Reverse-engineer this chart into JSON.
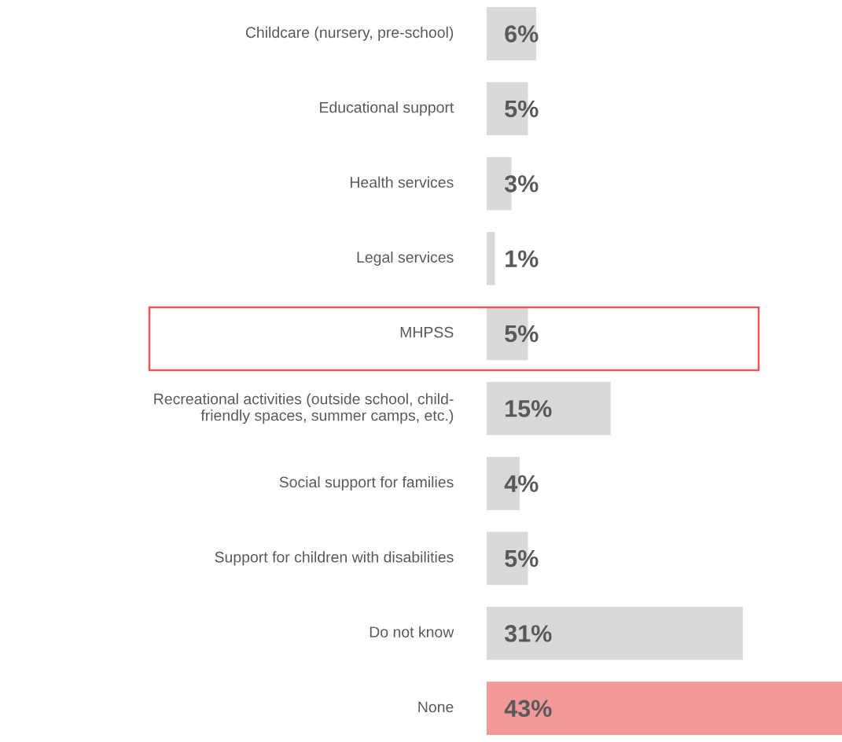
{
  "chart_data": {
    "type": "bar",
    "orientation": "horizontal",
    "categories": [
      "Childcare (nursery, pre-school)",
      "Educational support",
      "Health services",
      "Legal services",
      "MHPSS",
      "Recreational activities (outside school, child-\nfriendly spaces, summer camps, etc.)",
      "Social support for families",
      "Support for children with disabilities",
      "Do not know",
      "None"
    ],
    "values": [
      6,
      5,
      3,
      1,
      5,
      15,
      4,
      5,
      31,
      43
    ],
    "colors": [
      "#d9d9d9",
      "#d9d9d9",
      "#d9d9d9",
      "#d9d9d9",
      "#d9d9d9",
      "#d9d9d9",
      "#d9d9d9",
      "#d9d9d9",
      "#d9d9d9",
      "#f4999a"
    ],
    "value_labels": [
      "6%",
      "5%",
      "3%",
      "1%",
      "5%",
      "15%",
      "4%",
      "5%",
      "31%",
      "43%"
    ],
    "legend": false
  }
}
